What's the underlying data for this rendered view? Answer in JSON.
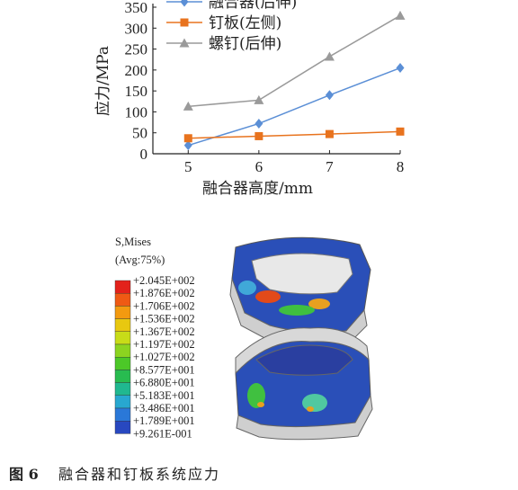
{
  "chart_data": {
    "type": "line",
    "x_label": "融合器高度/mm",
    "y_label": "应力/MPa",
    "x": [
      5,
      6,
      7,
      8
    ],
    "xlim": [
      4.5,
      8
    ],
    "xticks": [
      5,
      6,
      7,
      8
    ],
    "ylim": [
      0,
      350
    ],
    "yticks": [
      0,
      50,
      100,
      150,
      200,
      250,
      300,
      350
    ],
    "series": [
      {
        "name": "融合器(后伸)",
        "color": "#5b8fd6",
        "marker": "diamond",
        "values": [
          20,
          72,
          140,
          205
        ]
      },
      {
        "name": "钉板(左侧)",
        "color": "#e8731e",
        "marker": "square",
        "values": [
          37,
          42,
          47,
          53
        ]
      },
      {
        "name": "螺钉(后伸)",
        "color": "#9a9a9a",
        "marker": "triangle",
        "values": [
          113,
          128,
          232,
          330
        ]
      }
    ]
  },
  "contour_legend": {
    "title": "S,Mises",
    "subtitle": "(Avg:75%)",
    "labels": [
      "+2.045E+002",
      "+1.876E+002",
      "+1.706E+002",
      "+1.536E+002",
      "+1.367E+002",
      "+1.197E+002",
      "+1.027E+002",
      "+8.577E+001",
      "+6.880E+001",
      "+5.183E+001",
      "+3.486E+001",
      "+1.789E+001",
      "+9.261E-001"
    ],
    "colors": [
      "#e3221b",
      "#ef5a14",
      "#f39a10",
      "#e8c810",
      "#c8dc18",
      "#8cd420",
      "#4cc828",
      "#28bc50",
      "#20b890",
      "#28a8d0",
      "#2a78d8",
      "#2848c0"
    ]
  },
  "caption": {
    "label": "图 6",
    "text": "融合器和钉板系统应力"
  }
}
